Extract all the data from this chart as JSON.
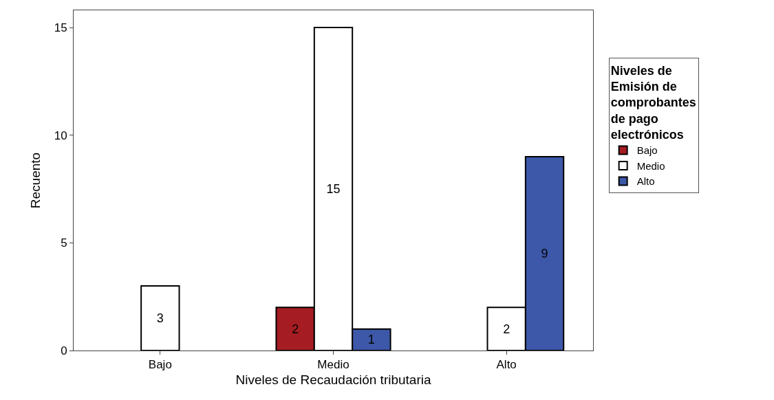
{
  "chart_data": {
    "type": "bar",
    "xlabel": "Niveles de Recaudación tributaria",
    "ylabel": "Recuento",
    "legend_title": "Niveles de Emisión de comprobantes de pago electrónicos",
    "categories": [
      "Bajo",
      "Medio",
      "Alto"
    ],
    "series": [
      {
        "name": "Bajo",
        "color": "#a51d22",
        "values": [
          null,
          2,
          null
        ]
      },
      {
        "name": "Medio",
        "color": "#ffffff",
        "values": [
          3,
          15,
          2
        ]
      },
      {
        "name": "Alto",
        "color": "#3d58a8",
        "values": [
          null,
          1,
          9
        ]
      }
    ],
    "ylim": [
      0,
      15.8
    ],
    "yticks": [
      0,
      5,
      10,
      15
    ],
    "legend": "top right",
    "data_labels": true
  }
}
